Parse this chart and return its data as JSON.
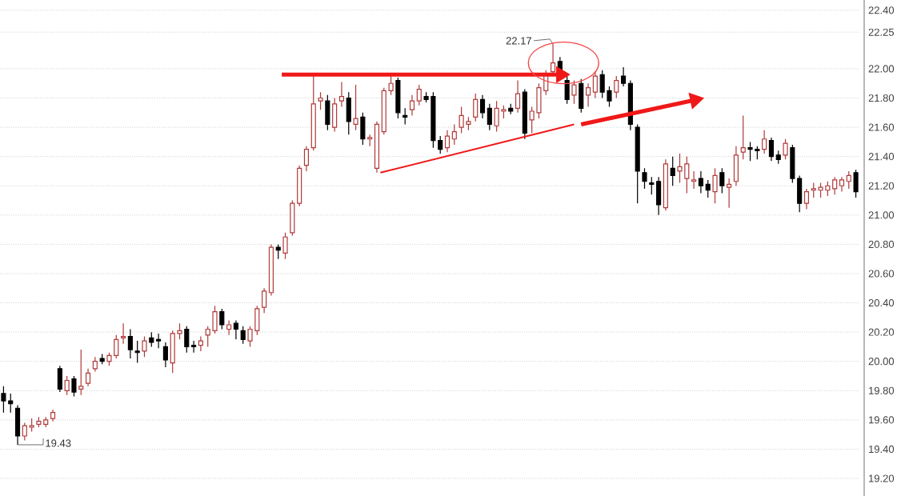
{
  "chart_data": {
    "type": "candlestick",
    "categories": [
      null,
      null,
      null,
      null,
      null,
      null,
      null,
      null,
      null,
      null,
      null,
      null,
      null,
      null,
      null,
      null,
      null,
      null,
      null,
      null,
      null,
      null,
      null,
      null,
      null,
      null,
      null,
      null,
      null,
      null,
      null,
      null,
      null,
      null,
      null,
      null,
      null,
      null,
      null,
      null,
      null,
      null,
      null,
      null,
      null,
      null,
      null,
      null,
      null,
      null,
      null,
      null,
      null,
      null,
      null,
      null,
      null,
      null,
      null,
      null,
      null,
      null,
      null,
      null,
      null,
      null,
      null,
      null,
      null,
      null,
      null,
      null,
      null,
      null,
      null,
      null,
      null,
      null,
      null,
      null,
      null,
      null,
      null,
      null,
      null,
      null,
      null,
      null,
      null,
      null,
      null,
      null,
      null,
      null,
      null,
      null,
      null,
      null,
      null,
      null,
      null,
      null,
      null,
      null,
      null,
      null,
      null,
      null,
      null,
      null,
      null,
      null,
      null,
      null,
      null,
      null,
      null,
      null,
      null,
      null,
      null,
      null
    ],
    "ohlc": [
      [
        19.78,
        19.83,
        19.65,
        19.73
      ],
      [
        19.73,
        19.78,
        19.65,
        19.71
      ],
      [
        19.68,
        19.7,
        19.43,
        19.49
      ],
      [
        19.49,
        19.58,
        19.46,
        19.56
      ],
      [
        19.55,
        19.61,
        19.52,
        19.56
      ],
      [
        19.57,
        19.62,
        19.55,
        19.59
      ],
      [
        19.57,
        19.62,
        19.55,
        19.6
      ],
      [
        19.61,
        19.67,
        19.59,
        19.65
      ],
      [
        19.95,
        19.97,
        19.79,
        19.81
      ],
      [
        19.8,
        19.9,
        19.77,
        19.87
      ],
      [
        19.88,
        19.9,
        19.76,
        19.79
      ],
      [
        19.81,
        20.08,
        19.77,
        19.83
      ],
      [
        19.85,
        19.95,
        19.83,
        19.92
      ],
      [
        19.95,
        20.03,
        19.93,
        20.0
      ],
      [
        20.02,
        20.05,
        19.98,
        20.0
      ],
      [
        20.0,
        20.06,
        19.97,
        20.04
      ],
      [
        20.04,
        20.18,
        20.02,
        20.15
      ],
      [
        20.16,
        20.26,
        20.12,
        20.17
      ],
      [
        20.17,
        20.22,
        20.02,
        20.08
      ],
      [
        20.07,
        20.14,
        19.99,
        20.06
      ],
      [
        20.07,
        20.17,
        20.03,
        20.14
      ],
      [
        20.16,
        20.2,
        20.1,
        20.13
      ],
      [
        20.15,
        20.19,
        20.09,
        20.14
      ],
      [
        20.1,
        20.13,
        19.96,
        20.01
      ],
      [
        19.99,
        20.21,
        19.92,
        20.19
      ],
      [
        20.19,
        20.26,
        20.15,
        20.21
      ],
      [
        20.22,
        20.24,
        20.06,
        20.1
      ],
      [
        20.11,
        20.14,
        20.06,
        20.1
      ],
      [
        20.11,
        20.17,
        20.07,
        20.14
      ],
      [
        20.18,
        20.24,
        20.1,
        20.22
      ],
      [
        20.21,
        20.38,
        20.19,
        20.34
      ],
      [
        20.34,
        20.36,
        20.22,
        20.25
      ],
      [
        20.22,
        20.28,
        20.18,
        20.25
      ],
      [
        20.26,
        20.28,
        20.15,
        20.22
      ],
      [
        20.21,
        20.24,
        20.12,
        20.15
      ],
      [
        20.14,
        20.24,
        20.1,
        20.22
      ],
      [
        20.21,
        20.38,
        20.18,
        20.36
      ],
      [
        20.37,
        20.5,
        20.33,
        20.48
      ],
      [
        20.47,
        20.8,
        20.45,
        20.78
      ],
      [
        20.78,
        20.8,
        20.7,
        20.76
      ],
      [
        20.74,
        20.88,
        20.7,
        20.85
      ],
      [
        20.88,
        21.1,
        20.86,
        21.08
      ],
      [
        21.08,
        21.34,
        21.06,
        21.32
      ],
      [
        21.34,
        21.47,
        21.3,
        21.45
      ],
      [
        21.46,
        21.96,
        21.44,
        21.76
      ],
      [
        21.78,
        21.84,
        21.72,
        21.8
      ],
      [
        21.78,
        21.82,
        21.58,
        21.62
      ],
      [
        21.6,
        21.8,
        21.57,
        21.76
      ],
      [
        21.78,
        21.91,
        21.74,
        21.81
      ],
      [
        21.8,
        21.84,
        21.55,
        21.64
      ],
      [
        21.62,
        21.89,
        21.58,
        21.66
      ],
      [
        21.67,
        21.7,
        21.48,
        21.52
      ],
      [
        21.52,
        21.55,
        21.47,
        21.53
      ],
      [
        21.32,
        21.64,
        21.29,
        21.62
      ],
      [
        21.57,
        21.87,
        21.55,
        21.85
      ],
      [
        21.85,
        21.95,
        21.82,
        21.9
      ],
      [
        21.92,
        21.94,
        21.66,
        21.7
      ],
      [
        21.68,
        21.73,
        21.62,
        21.67
      ],
      [
        21.72,
        21.82,
        21.68,
        21.78
      ],
      [
        21.78,
        21.89,
        21.75,
        21.86
      ],
      [
        21.81,
        21.84,
        21.77,
        21.79
      ],
      [
        21.81,
        21.84,
        21.46,
        21.51
      ],
      [
        21.51,
        21.54,
        21.42,
        21.45
      ],
      [
        21.46,
        21.58,
        21.43,
        21.54
      ],
      [
        21.52,
        21.62,
        21.48,
        21.57
      ],
      [
        21.6,
        21.74,
        21.56,
        21.68
      ],
      [
        21.62,
        21.67,
        21.58,
        21.64
      ],
      [
        21.67,
        21.83,
        21.64,
        21.79
      ],
      [
        21.79,
        21.82,
        21.66,
        21.7
      ],
      [
        21.73,
        21.76,
        21.58,
        21.62
      ],
      [
        21.61,
        21.78,
        21.57,
        21.73
      ],
      [
        21.71,
        21.75,
        21.66,
        21.72
      ],
      [
        21.73,
        21.76,
        21.69,
        21.71
      ],
      [
        21.73,
        21.92,
        21.7,
        21.83
      ],
      [
        21.84,
        21.86,
        21.52,
        21.56
      ],
      [
        21.65,
        21.74,
        21.56,
        21.71
      ],
      [
        21.7,
        21.9,
        21.66,
        21.87
      ],
      [
        21.85,
        21.99,
        21.82,
        21.96
      ],
      [
        21.98,
        22.17,
        21.95,
        22.04
      ],
      [
        22.05,
        22.08,
        21.96,
        21.98
      ],
      [
        21.92,
        21.95,
        21.76,
        21.79
      ],
      [
        21.82,
        21.92,
        21.76,
        21.89
      ],
      [
        21.9,
        21.93,
        21.7,
        21.73
      ],
      [
        21.82,
        21.9,
        21.74,
        21.87
      ],
      [
        21.84,
        21.98,
        21.8,
        21.95
      ],
      [
        21.96,
        21.99,
        21.8,
        21.84
      ],
      [
        21.85,
        21.88,
        21.74,
        21.78
      ],
      [
        21.84,
        21.95,
        21.8,
        21.92
      ],
      [
        21.95,
        22.01,
        21.88,
        21.9
      ],
      [
        21.9,
        21.92,
        21.58,
        21.62
      ],
      [
        21.6,
        21.62,
        21.08,
        21.3
      ],
      [
        21.29,
        21.32,
        21.18,
        21.23
      ],
      [
        21.22,
        21.26,
        21.14,
        21.21
      ],
      [
        21.23,
        21.26,
        21.0,
        21.07
      ],
      [
        21.05,
        21.38,
        21.03,
        21.35
      ],
      [
        21.32,
        21.4,
        21.2,
        21.27
      ],
      [
        21.3,
        21.42,
        21.22,
        21.33
      ],
      [
        21.25,
        21.4,
        21.15,
        21.35
      ],
      [
        21.23,
        21.3,
        21.18,
        21.24
      ],
      [
        21.25,
        21.3,
        21.15,
        21.2
      ],
      [
        21.21,
        21.24,
        21.12,
        21.17
      ],
      [
        21.16,
        21.32,
        21.08,
        21.27
      ],
      [
        21.29,
        21.32,
        21.15,
        21.2
      ],
      [
        21.19,
        21.25,
        21.05,
        21.21
      ],
      [
        21.23,
        21.47,
        21.2,
        21.41
      ],
      [
        21.43,
        21.68,
        21.38,
        21.46
      ],
      [
        21.46,
        21.5,
        21.37,
        21.45
      ],
      [
        21.45,
        21.47,
        21.38,
        21.44
      ],
      [
        21.45,
        21.58,
        21.42,
        21.52
      ],
      [
        21.51,
        21.53,
        21.37,
        21.4
      ],
      [
        21.41,
        21.44,
        21.35,
        21.38
      ],
      [
        21.41,
        21.52,
        21.38,
        21.49
      ],
      [
        21.46,
        21.48,
        21.22,
        21.25
      ],
      [
        21.25,
        21.27,
        21.02,
        21.08
      ],
      [
        21.08,
        21.18,
        21.04,
        21.16
      ],
      [
        21.17,
        21.22,
        21.12,
        21.18
      ],
      [
        21.17,
        21.22,
        21.12,
        21.19
      ],
      [
        21.17,
        21.23,
        21.13,
        21.2
      ],
      [
        21.18,
        21.26,
        21.14,
        21.24
      ],
      [
        21.2,
        21.26,
        21.16,
        21.24
      ],
      [
        21.23,
        21.3,
        21.18,
        21.27
      ],
      [
        21.29,
        21.31,
        21.12,
        21.16
      ]
    ],
    "ylim": [
      19.08,
      22.47
    ],
    "yticks": [
      {
        "value": 22.4,
        "label": "22.40"
      },
      {
        "value": 22.25,
        "label": "22.25"
      },
      {
        "value": 22.0,
        "label": "22.00"
      },
      {
        "value": 21.8,
        "label": "21.80"
      },
      {
        "value": 21.6,
        "label": "21.60"
      },
      {
        "value": 21.4,
        "label": "21.40"
      },
      {
        "value": 21.2,
        "label": "21.20"
      },
      {
        "value": 21.0,
        "label": "21.00"
      },
      {
        "value": 20.8,
        "label": "20.80"
      },
      {
        "value": 20.6,
        "label": "20.60"
      },
      {
        "value": 20.4,
        "label": "20.40"
      },
      {
        "value": 20.2,
        "label": "20.20"
      },
      {
        "value": 20.0,
        "label": "20.00"
      },
      {
        "value": 19.8,
        "label": "19.80"
      },
      {
        "value": 19.6,
        "label": "19.60"
      },
      {
        "value": 19.4,
        "label": "19.40"
      },
      {
        "value": 19.2,
        "label": "19.20"
      }
    ],
    "grid": "y",
    "tick_labels": "y",
    "annotations": [
      "22.17",
      "19.43"
    ]
  }
}
